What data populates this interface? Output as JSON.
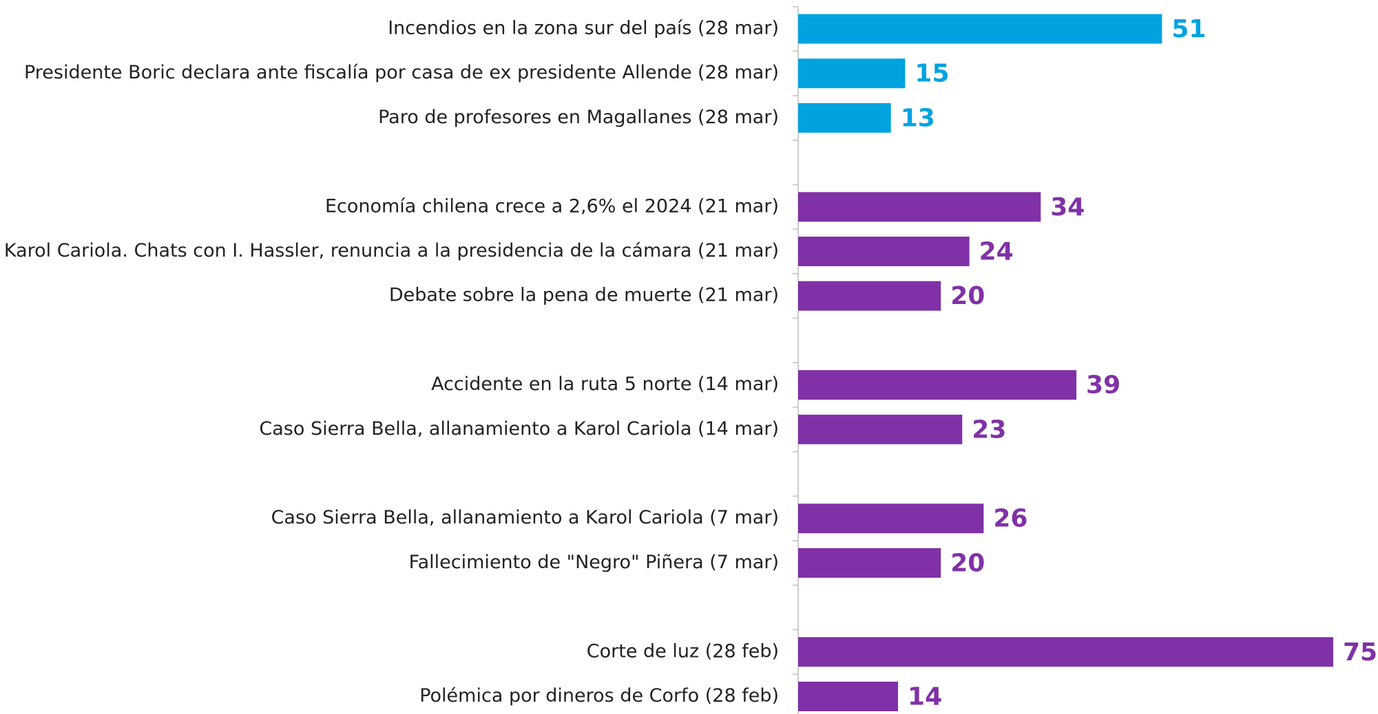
{
  "chart_data": {
    "type": "bar",
    "orientation": "horizontal",
    "categories": [
      "Incendios en la zona sur del país (28 mar)",
      "Presidente Boric declara ante fiscalía por casa de ex presidente Allende (28 mar)",
      "Paro de profesores en Magallanes (28 mar)",
      null,
      "Economía chilena crece a 2,6% el 2024 (21 mar)",
      "Karol Cariola. Chats con I. Hassler, renuncia a la presidencia de la cámara (21 mar)",
      "Debate sobre la pena de muerte (21 mar)",
      null,
      "Accidente en la ruta 5 norte (14 mar)",
      "Caso Sierra Bella, allanamiento a Karol Cariola (14 mar)",
      null,
      "Caso Sierra Bella, allanamiento a Karol Cariola (7 mar)",
      "Fallecimiento de \"Negro\" Piñera (7 mar)",
      null,
      "Corte de luz (28 feb)",
      "Polémica por dineros de Corfo (28 feb)"
    ],
    "values": [
      51,
      15,
      13,
      null,
      34,
      24,
      20,
      null,
      39,
      23,
      null,
      26,
      20,
      null,
      75,
      14
    ],
    "colors": [
      "#00a3e0",
      "#00a3e0",
      "#00a3e0",
      null,
      "#8031a7",
      "#8031a7",
      "#8031a7",
      null,
      "#8031a7",
      "#8031a7",
      null,
      "#8031a7",
      "#8031a7",
      null,
      "#8031a7",
      "#8031a7"
    ]
  }
}
